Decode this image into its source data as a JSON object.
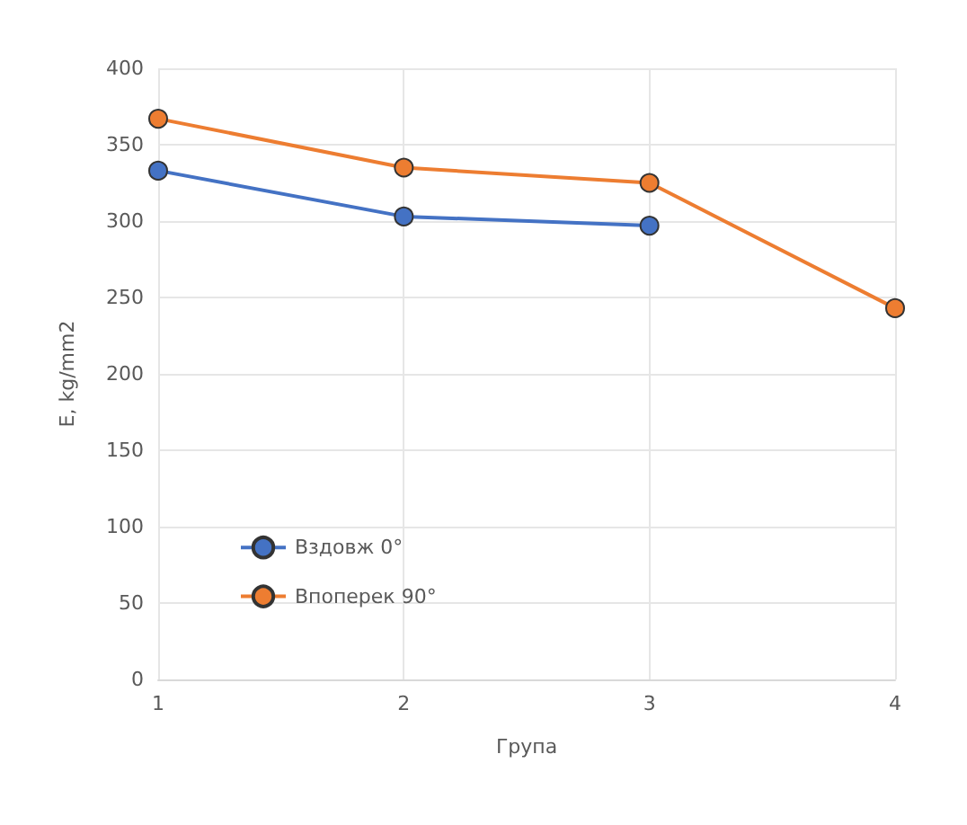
{
  "chart_data": {
    "type": "line",
    "xlabel": "Група",
    "ylabel": "E, kg/mm2",
    "x": [
      1,
      2,
      3,
      4
    ],
    "xlim": [
      1,
      4
    ],
    "xticks": [
      1,
      2,
      3,
      4
    ],
    "ylim": [
      0,
      400
    ],
    "yticks": [
      0,
      50,
      100,
      150,
      200,
      250,
      300,
      350,
      400
    ],
    "series": [
      {
        "name": "Вздовж 0°",
        "color": "#4472c4",
        "values": [
          333,
          303,
          297,
          null
        ]
      },
      {
        "name": "Впоперек 90°",
        "color": "#ed7d31",
        "values": [
          367,
          335,
          325,
          243
        ]
      }
    ],
    "grid": true,
    "legend": "bottom left",
    "marker": "circle",
    "line_style": "solid"
  }
}
